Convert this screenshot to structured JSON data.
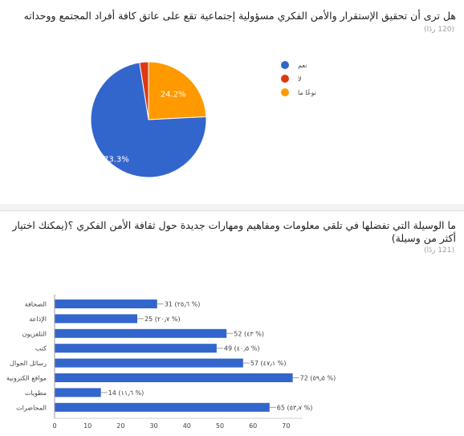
{
  "question1": {
    "title": "هل ترى أن تحقيق الإستقرار والأمن الفكري مسؤولية إجتماعية تقع على عاتق كافة أفراد المجتمع ووحداته",
    "response_count": "(120 ردًا)"
  },
  "question2": {
    "title_line1": "ما الوسيلة التي تفضلها في تلقي معلومات ومفاهيم ومهارات جديدة حول ثقافة الأمن الفكري ؟(يمكنك اختيار",
    "title_line2": "أكثر من وسيلة)",
    "response_count": "(121 ردًا)"
  },
  "colors": {
    "blue": "#3366cc",
    "red": "#dc3912",
    "orange": "#ff9900",
    "axis": "#cccccc"
  },
  "chart_data": [
    {
      "type": "pie",
      "labels": [
        "نعم",
        "لا",
        "نوعًا ما"
      ],
      "values": [
        73.3,
        2.5,
        24.2
      ],
      "slice_labels": [
        "73.3%",
        "",
        "24.2%"
      ],
      "colors": [
        "#3366cc",
        "#dc3912",
        "#ff9900"
      ],
      "legend_position": "right"
    },
    {
      "type": "bar",
      "orientation": "horizontal",
      "categories": [
        "الصحافة",
        "الإذاعة",
        "التلفزيون",
        "كتب",
        "رسائل الجوال",
        "مواقع الكترونية",
        "مطويات",
        "المحاضرات"
      ],
      "values": [
        31,
        25,
        52,
        49,
        57,
        72,
        14,
        65
      ],
      "data_labels": [
        "31 (٢٥٫٦ %)",
        "25 (٢٠٫٧ %)",
        "52 (٤٣ %)",
        "49 (٤٠٫٥ %)",
        "57 (٤٧٫١ %)",
        "72 (٥٩٫٥ %)",
        "14 (١١٫٦ %)",
        "65 (٥٣٫٧ %)"
      ],
      "xlim": [
        0,
        75
      ],
      "xticks": [
        0,
        10,
        20,
        30,
        40,
        50,
        60,
        70
      ],
      "grid": false,
      "color": "#3366cc"
    }
  ]
}
